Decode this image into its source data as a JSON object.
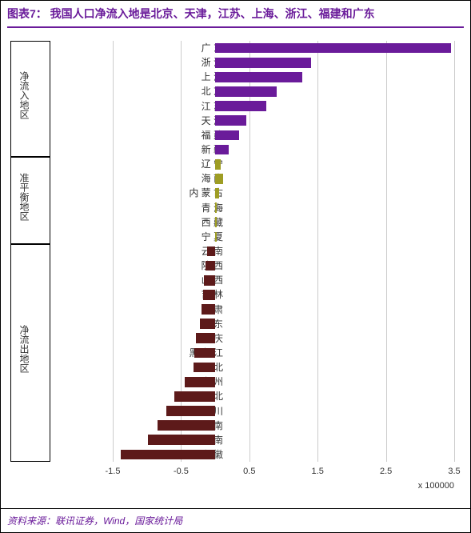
{
  "title": "图表7：  我国人口净流入地是北京、天津，江苏、上海、浙江、福建和广东",
  "title_color": "#6a1b9a",
  "source": "资料来源：联讯证券，Wind，国家统计局",
  "chart": {
    "type": "bar",
    "orientation": "horizontal",
    "xlim": [
      -1.5,
      3.5
    ],
    "xticks": [
      -1.5,
      -0.5,
      0.5,
      1.5,
      2.5,
      3.5
    ],
    "xtick_labels": [
      "-1.5",
      "-0.5",
      "0.5",
      "1.5",
      "2.5",
      "3.5"
    ],
    "x_unit_label": "x 100000",
    "grid_color": "#cccccc",
    "background_color": "#ffffff",
    "bar_width": 0.7,
    "groups": [
      {
        "name": "净流入地区",
        "color": "#6a1b9a",
        "items": [
          {
            "label": "广 东",
            "value": 3.45
          },
          {
            "label": "浙 江",
            "value": 1.4
          },
          {
            "label": "上 海",
            "value": 1.28
          },
          {
            "label": "北 京",
            "value": 0.9
          },
          {
            "label": "江 苏",
            "value": 0.75
          },
          {
            "label": "天 津",
            "value": 0.45
          },
          {
            "label": "福 建",
            "value": 0.35
          },
          {
            "label": "新 疆",
            "value": 0.2
          }
        ]
      },
      {
        "name": "准平衡地区",
        "color": "#9e9d24",
        "items": [
          {
            "label": "辽 宁",
            "value": 0.08
          },
          {
            "label": "海 南",
            "value": 0.12
          },
          {
            "label": "内 蒙 古",
            "value": 0.06
          },
          {
            "label": "青 海",
            "value": 0.02
          },
          {
            "label": "西 藏",
            "value": 0.02
          },
          {
            "label": "宁 夏",
            "value": 0.02
          }
        ]
      },
      {
        "name": "净流出地区",
        "color": "#5d1a1a",
        "items": [
          {
            "label": "云 南",
            "value": -0.12
          },
          {
            "label": "陕 西",
            "value": -0.14
          },
          {
            "label": "山 西",
            "value": -0.16
          },
          {
            "label": "吉 林",
            "value": -0.18
          },
          {
            "label": "甘 肃",
            "value": -0.2
          },
          {
            "label": "山 东",
            "value": -0.22
          },
          {
            "label": "重 庆",
            "value": -0.28
          },
          {
            "label": "黑 龙 江",
            "value": -0.3
          },
          {
            "label": "河 北",
            "value": -0.32
          },
          {
            "label": "贵 州",
            "value": -0.45
          },
          {
            "label": "湖 北",
            "value": -0.6
          },
          {
            "label": "四 川",
            "value": -0.72
          },
          {
            "label": "湖 南",
            "value": -0.85
          },
          {
            "label": "河 南",
            "value": -0.98
          },
          {
            "label": "安 徽",
            "value": -1.38
          }
        ]
      }
    ]
  }
}
